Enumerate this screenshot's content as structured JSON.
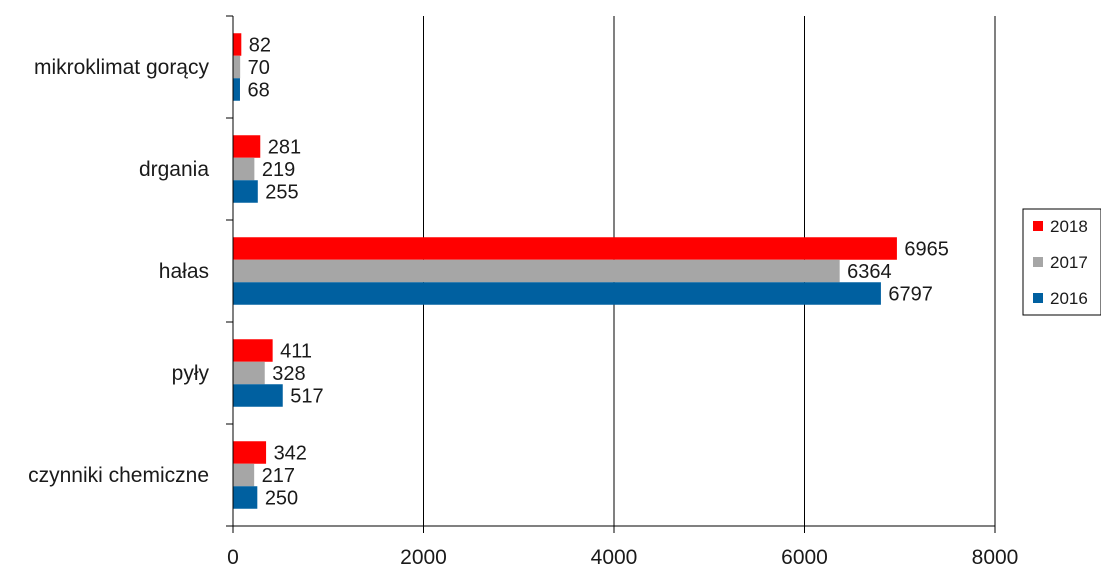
{
  "chart_data": {
    "type": "bar",
    "orientation": "horizontal",
    "title": "",
    "xlabel": "",
    "ylabel": "",
    "categories": [
      "mikroklimat gorący",
      "drgania",
      "hałas",
      "pyły",
      "czynniki chemiczne"
    ],
    "series": [
      {
        "name": "2018",
        "color": "#ff0000",
        "values": [
          82,
          281,
          6965,
          411,
          342
        ]
      },
      {
        "name": "2017",
        "color": "#a6a6a6",
        "values": [
          70,
          219,
          6364,
          328,
          217
        ]
      },
      {
        "name": "2016",
        "color": "#0060a0",
        "values": [
          68,
          255,
          6797,
          517,
          250
        ]
      }
    ],
    "xlim": [
      0,
      8000
    ],
    "xticks": [
      0,
      2000,
      4000,
      6000,
      8000
    ],
    "grid": "vertical",
    "legend": {
      "placement": "right",
      "entries": [
        "2018",
        "2017",
        "2016"
      ]
    }
  }
}
